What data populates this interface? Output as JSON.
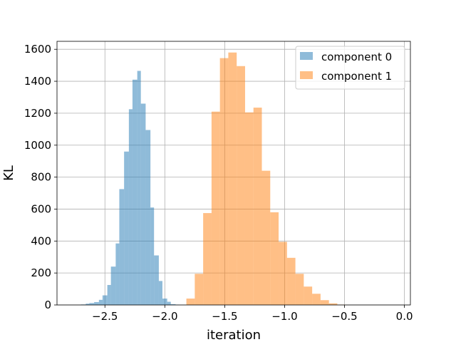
{
  "chart_data": {
    "type": "bar",
    "title": "",
    "xlabel": "iteration",
    "ylabel": "KL",
    "xlim": [
      -2.9,
      0.05
    ],
    "ylim": [
      0,
      1650
    ],
    "grid": true,
    "legend_position": "top-right",
    "x_ticks": [
      -2.5,
      -2.0,
      -1.5,
      -1.0,
      -0.5,
      0.0
    ],
    "x_tick_labels": [
      "−2.5",
      "−2.0",
      "−1.5",
      "−1.0",
      "−0.5",
      "0.0"
    ],
    "y_ticks": [
      0,
      200,
      400,
      600,
      800,
      1000,
      1200,
      1400,
      1600
    ],
    "y_tick_labels": [
      "0",
      "200",
      "400",
      "600",
      "800",
      "1000",
      "1200",
      "1400",
      "1600"
    ],
    "series": [
      {
        "name": "component 0",
        "color": "#1f77b4",
        "alpha": 0.5,
        "bin_edges": [
          -2.7,
          -2.66,
          -2.63,
          -2.59,
          -2.55,
          -2.52,
          -2.48,
          -2.45,
          -2.41,
          -2.38,
          -2.34,
          -2.3,
          -2.27,
          -2.23,
          -2.2,
          -2.16,
          -2.12,
          -2.09,
          -2.05,
          -2.02,
          -1.98,
          -1.95,
          -1.91,
          -1.88
        ],
        "counts": [
          3,
          8,
          12,
          18,
          32,
          60,
          125,
          240,
          385,
          725,
          960,
          1225,
          1410,
          1465,
          1260,
          1095,
          610,
          310,
          150,
          40,
          20,
          5,
          2
        ]
      },
      {
        "name": "component 1",
        "color": "#ff7f0e",
        "alpha": 0.5,
        "bin_edges": [
          -1.82,
          -1.75,
          -1.68,
          -1.61,
          -1.54,
          -1.47,
          -1.4,
          -1.33,
          -1.26,
          -1.19,
          -1.12,
          -1.05,
          -0.98,
          -0.91,
          -0.84,
          -0.77,
          -0.7,
          -0.63,
          -0.56,
          -0.49
        ],
        "counts": [
          40,
          195,
          575,
          1210,
          1545,
          1580,
          1495,
          1205,
          1235,
          840,
          580,
          395,
          295,
          195,
          115,
          70,
          30,
          10,
          2
        ]
      }
    ]
  }
}
